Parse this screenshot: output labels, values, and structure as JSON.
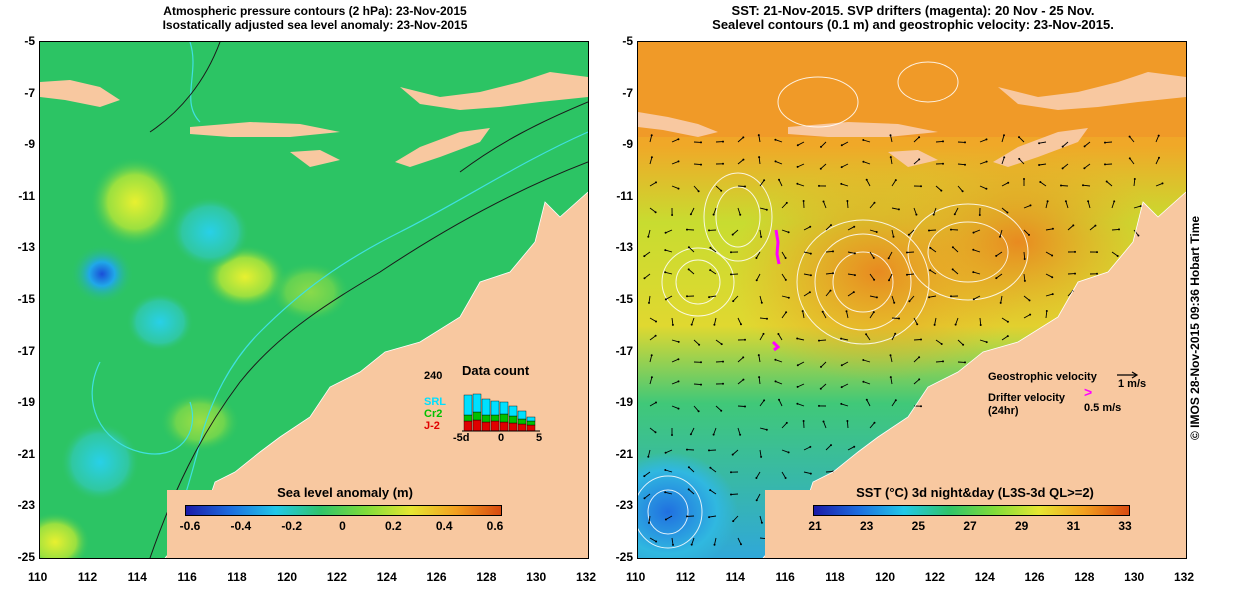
{
  "left_panel": {
    "title_line1": "Atmospheric pressure contours (2 hPa): 23-Nov-2015",
    "title_line2": "Isostatically adjusted sea level anomaly: 23-Nov-2015",
    "colorbar_label": "Sea level anomaly (m)",
    "colorbar_ticks": [
      "-0.6",
      "-0.4",
      "-0.2",
      "0",
      "0.2",
      "0.4",
      "0.6"
    ],
    "colorbar_colors": [
      "#1a1aa8",
      "#1c6ee0",
      "#22c8e8",
      "#2fc46a",
      "#7fdc3a",
      "#e6e632",
      "#f2a020",
      "#d84a10"
    ],
    "data_count": {
      "title": "Data count",
      "max_label": "240",
      "sat1": "SRL",
      "sat2": "Cr2",
      "sat3": "J-2",
      "axis_ticks": [
        "-5d",
        "0",
        "5"
      ],
      "sat1_color": "#00e0ff",
      "sat2_color": "#00c000",
      "sat3_color": "#e00000"
    }
  },
  "right_panel": {
    "title_line1": "SST: 21-Nov-2015. SVP drifters (magenta): 20 Nov - 25 Nov.",
    "title_line2": "Sealevel contours (0.1 m) and geostrophic velocity: 23-Nov-2015.",
    "colorbar_label": "SST (°C) 3d night&day (L3S-3d QL>=2)",
    "colorbar_ticks": [
      "21",
      "23",
      "25",
      "27",
      "29",
      "31",
      "33"
    ],
    "colorbar_colors": [
      "#1a1aa8",
      "#1c6ee0",
      "#22c8e8",
      "#2fc46a",
      "#7fdc3a",
      "#e6e632",
      "#f2a020",
      "#d84a10"
    ],
    "legend_geo": "Geostrophic velocity",
    "legend_geo_unit": "1 m/s",
    "legend_drifter_1": "Drifter velocity",
    "legend_drifter_2": "(24hr)",
    "legend_drifter_unit": "0.5 m/s",
    "drifter_color": "#ff00ff"
  },
  "axes": {
    "x_ticks": [
      "110",
      "112",
      "114",
      "116",
      "118",
      "120",
      "122",
      "124",
      "126",
      "128",
      "130",
      "132"
    ],
    "y_ticks": [
      "-5",
      "-7",
      "-9",
      "-11",
      "-13",
      "-15",
      "-17",
      "-19",
      "-21",
      "-23",
      "-25"
    ]
  },
  "colors": {
    "land": "#f8c8a0",
    "ocean_slaw": "#2cc860",
    "sst_warm": "#f09a28",
    "sst_mid": "#c8dc30",
    "sst_cool": "#30c8c8"
  },
  "credit": "© IMOS 28-Nov-2015 09:36 Hobart Time"
}
